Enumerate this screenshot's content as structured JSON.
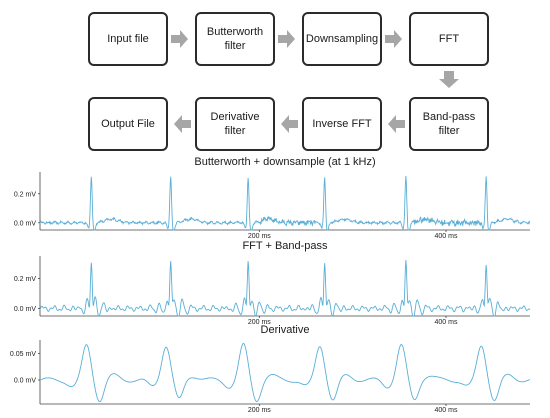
{
  "flow": {
    "nodes": [
      {
        "id": "input",
        "label": "Input file"
      },
      {
        "id": "butter",
        "label": "Butterworth\nfilter"
      },
      {
        "id": "down",
        "label": "Downsampling"
      },
      {
        "id": "fft",
        "label": "FFT"
      },
      {
        "id": "bandpass",
        "label": "Band-pass\nfilter"
      },
      {
        "id": "ifft",
        "label": "Inverse FFT"
      },
      {
        "id": "deriv",
        "label": "Derivative\nfilter"
      },
      {
        "id": "output",
        "label": "Output File"
      }
    ],
    "edges": [
      [
        "input",
        "butter"
      ],
      [
        "butter",
        "down"
      ],
      [
        "down",
        "fft"
      ],
      [
        "fft",
        "bandpass"
      ],
      [
        "bandpass",
        "ifft"
      ],
      [
        "ifft",
        "deriv"
      ],
      [
        "deriv",
        "output"
      ]
    ],
    "arrow_color": "#a6a6a6"
  },
  "signal_color": "#5aafd6",
  "beats_ms": [
    20,
    105,
    188,
    270,
    357,
    443
  ],
  "plots": [
    {
      "id": "butterworth",
      "title": "Butterworth + downsample (at 1 kHz)",
      "yticks": [
        {
          "v": 0.2,
          "label": "0.2 mV"
        },
        {
          "v": 0.0,
          "label": "0.0 mV"
        }
      ],
      "ylim": [
        -0.05,
        0.35
      ],
      "xticks": [
        {
          "v": 200,
          "label": "200 ms"
        },
        {
          "v": 400,
          "label": "400 ms"
        }
      ],
      "xlim": [
        -35,
        490
      ]
    },
    {
      "id": "bandpass",
      "title": "FFT + Band-pass",
      "yticks": [
        {
          "v": 0.2,
          "label": "0.2 mV"
        },
        {
          "v": 0.0,
          "label": "0.0 mV"
        }
      ],
      "ylim": [
        -0.05,
        0.35
      ],
      "xticks": [
        {
          "v": 200,
          "label": "200 ms"
        },
        {
          "v": 400,
          "label": "400 ms"
        }
      ],
      "xlim": [
        -35,
        490
      ]
    },
    {
      "id": "derivative",
      "title": "Derivative",
      "yticks": [
        {
          "v": 0.05,
          "label": "0.05 mV"
        },
        {
          "v": 0.0,
          "label": "0.0 mV"
        }
      ],
      "ylim": [
        -0.045,
        0.075
      ],
      "xticks": [
        {
          "v": 200,
          "label": "200 ms"
        },
        {
          "v": 400,
          "label": "400 ms"
        }
      ],
      "xlim": [
        -35,
        490
      ]
    }
  ]
}
